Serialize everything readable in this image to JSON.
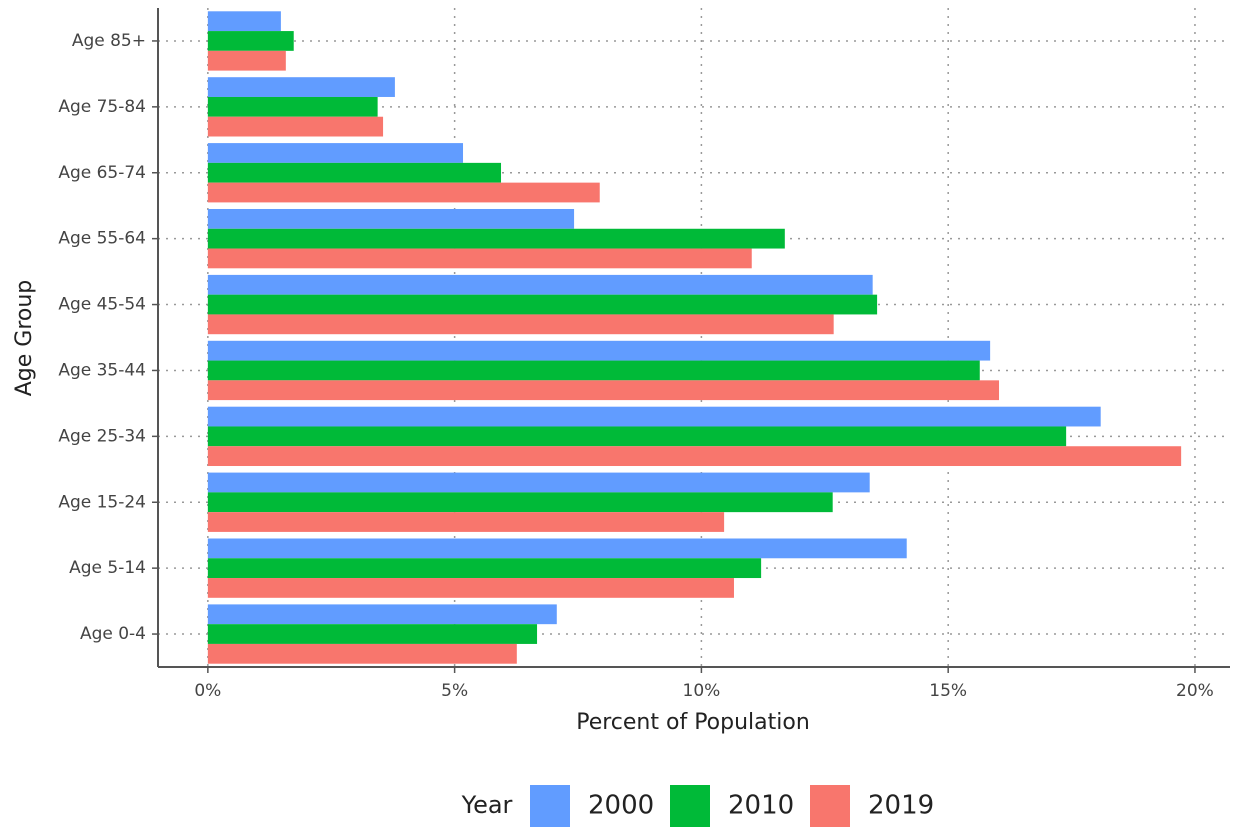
{
  "chart_data": {
    "type": "barh",
    "x_label": "Percent of Population",
    "y_label": "Age Group",
    "legend_title": "Year",
    "legend_position": "bottom",
    "grid": true,
    "categories": [
      "Age 0-4",
      "Age 5-14",
      "Age 15-24",
      "Age 25-34",
      "Age 35-44",
      "Age 45-54",
      "Age 55-64",
      "Age 65-74",
      "Age 75-84",
      "Age 85+"
    ],
    "series": [
      {
        "name": "2000",
        "color": "#619CFF",
        "values": [
          7.07,
          14.16,
          13.41,
          18.09,
          15.85,
          13.47,
          7.42,
          5.17,
          3.79,
          1.48
        ]
      },
      {
        "name": "2010",
        "color": "#00BA38",
        "values": [
          6.67,
          11.21,
          12.66,
          17.39,
          15.64,
          13.56,
          11.69,
          5.94,
          3.44,
          1.74
        ]
      },
      {
        "name": "2019",
        "color": "#F8766D",
        "values": [
          6.26,
          10.66,
          10.46,
          19.72,
          16.03,
          12.68,
          11.02,
          7.94,
          3.55,
          1.58
        ]
      }
    ],
    "xlim": [
      -1.01,
      20.71
    ],
    "xticks": [
      {
        "value": 0,
        "label": "0%"
      },
      {
        "value": 5,
        "label": "5%"
      },
      {
        "value": 10,
        "label": "10%"
      },
      {
        "value": 15,
        "label": "15%"
      },
      {
        "value": 20,
        "label": "20%"
      }
    ]
  }
}
